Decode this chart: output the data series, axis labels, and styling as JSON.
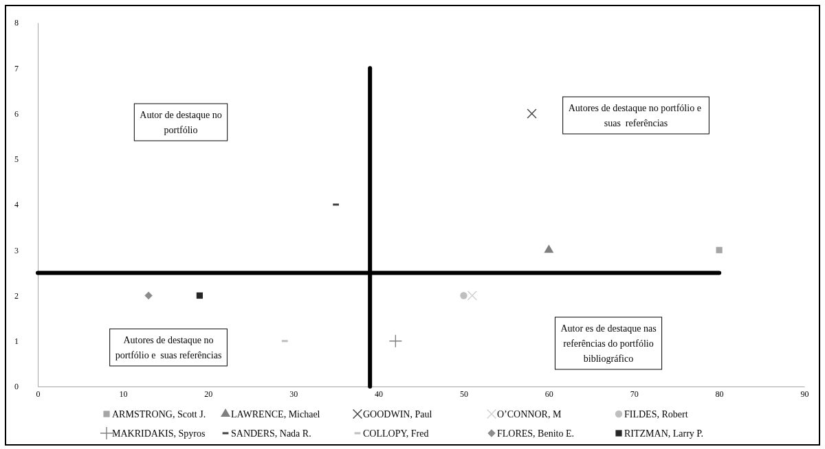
{
  "chart_data": {
    "type": "scatter",
    "xlim": [
      0,
      90
    ],
    "xticks": [
      0,
      10,
      20,
      30,
      40,
      50,
      60,
      70,
      80,
      90
    ],
    "ylim": [
      0,
      8
    ],
    "yticks": [
      0,
      1,
      2,
      3,
      4,
      5,
      6,
      7,
      8
    ],
    "grid": false,
    "legend": "bottom",
    "annotations": [
      "Autor de destaque no portfólio",
      "Autores de destaque no portfólio e  suas  referências",
      "Autores de destaque no portfólio e  suas referências",
      "Autor es de destaque nas referências do portfólio bibliográfico"
    ],
    "series": [
      {
        "name": "ARMSTRONG, Scott J.",
        "color": "#a6a6a6",
        "marker": "square",
        "x": [
          80
        ],
        "values": [
          3
        ]
      },
      {
        "name": "LAWRENCE, Michael",
        "color": "#7f7f7f",
        "marker": "triangle",
        "x": [
          60
        ],
        "values": [
          3
        ]
      },
      {
        "name": "GOODWIN, Paul",
        "color": "#404040",
        "marker": "cross",
        "x": [
          58
        ],
        "values": [
          6
        ]
      },
      {
        "name": "O’CONNOR, M",
        "color": "#d0d0d0",
        "marker": "cross",
        "x": [
          51
        ],
        "values": [
          2
        ]
      },
      {
        "name": "FILDES, Robert",
        "color": "#bfbfbf",
        "marker": "circle",
        "x": [
          50
        ],
        "values": [
          2
        ]
      },
      {
        "name": "MAKRIDAKIS, Spyros",
        "color": "#7f7f7f",
        "marker": "plus",
        "x": [
          42
        ],
        "values": [
          1
        ]
      },
      {
        "name": "SANDERS, Nada R.",
        "color": "#404040",
        "x": [
          35
        ],
        "values": [
          4
        ]
      },
      {
        "name": "COLLOPY, Fred",
        "color": "#bfbfbf",
        "x": [
          29
        ],
        "values": [
          1
        ]
      },
      {
        "name": "FLORES, Benito E.",
        "color": "#8c8c8c",
        "marker": "diamond",
        "x": [
          13
        ],
        "values": [
          2
        ]
      },
      {
        "name": "RITZMAN, Larry P.",
        "color": "#262626",
        "marker": "square",
        "x": [
          19
        ],
        "values": [
          2
        ]
      },
      {
        "type": "line",
        "color": "#000000",
        "marker": "none",
        "x": [
          0,
          80
        ],
        "values": [
          2.5,
          2.5
        ]
      },
      {
        "type": "line",
        "color": "#000000",
        "marker": "none",
        "x": [
          39,
          39
        ],
        "values": [
          0,
          7
        ]
      }
    ]
  }
}
